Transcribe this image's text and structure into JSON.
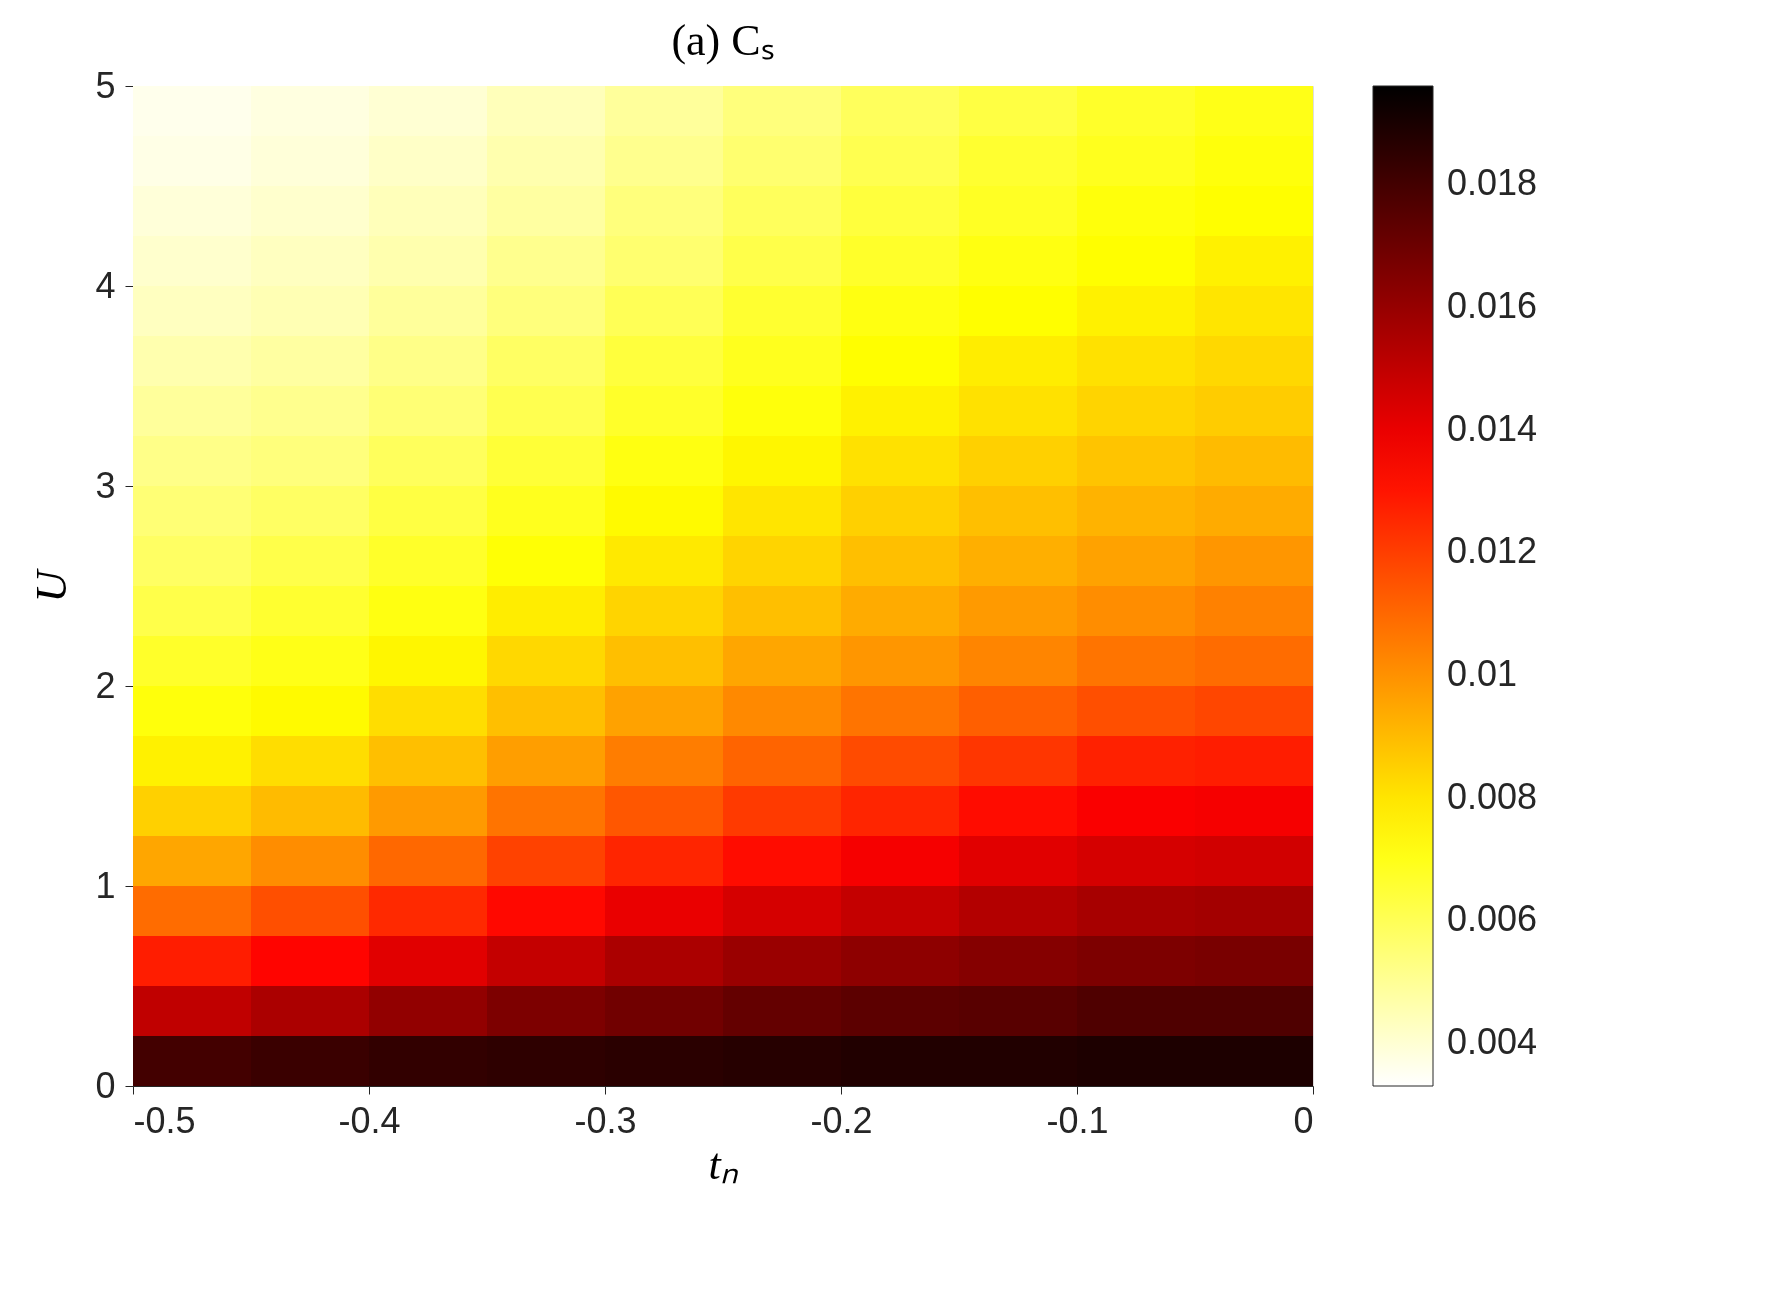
{
  "chart_data": {
    "type": "heatmap",
    "title": "(a) Cₛ",
    "xlabel": "tₙ",
    "ylabel": "U",
    "x": [
      -0.475,
      -0.425,
      -0.375,
      -0.325,
      -0.275,
      -0.225,
      -0.175,
      -0.125,
      -0.075,
      -0.025
    ],
    "y": [
      4.875,
      4.625,
      4.375,
      4.125,
      3.875,
      3.625,
      3.375,
      3.125,
      2.875,
      2.625,
      2.375,
      2.125,
      1.875,
      1.625,
      1.375,
      1.125,
      0.875,
      0.625,
      0.375,
      0.125
    ],
    "cells": [
      [
        0.0036,
        0.0038,
        0.004,
        0.0044,
        0.0049,
        0.0054,
        0.0059,
        0.0063,
        0.0067,
        0.007
      ],
      [
        0.0037,
        0.0039,
        0.0042,
        0.0046,
        0.0051,
        0.0056,
        0.0061,
        0.0066,
        0.0069,
        0.0072
      ],
      [
        0.0039,
        0.0041,
        0.0044,
        0.0048,
        0.0054,
        0.0059,
        0.0064,
        0.0068,
        0.0072,
        0.0074
      ],
      [
        0.0041,
        0.0043,
        0.0046,
        0.0051,
        0.0056,
        0.0062,
        0.0067,
        0.0071,
        0.0074,
        0.0077
      ],
      [
        0.0043,
        0.0045,
        0.0049,
        0.0054,
        0.006,
        0.0066,
        0.0071,
        0.0074,
        0.0077,
        0.008
      ],
      [
        0.0046,
        0.0048,
        0.0052,
        0.0058,
        0.0064,
        0.0069,
        0.0074,
        0.0078,
        0.0081,
        0.0083
      ],
      [
        0.0049,
        0.0051,
        0.0055,
        0.0061,
        0.0067,
        0.0072,
        0.0077,
        0.0081,
        0.0084,
        0.0086
      ],
      [
        0.0052,
        0.0054,
        0.0059,
        0.0065,
        0.0071,
        0.0076,
        0.0081,
        0.0085,
        0.0088,
        0.009
      ],
      [
        0.0055,
        0.0058,
        0.0063,
        0.0069,
        0.0075,
        0.008,
        0.0085,
        0.0089,
        0.0092,
        0.0094
      ],
      [
        0.0058,
        0.0062,
        0.0067,
        0.0073,
        0.0079,
        0.0084,
        0.0089,
        0.0093,
        0.0096,
        0.0099
      ],
      [
        0.0062,
        0.0066,
        0.0071,
        0.0078,
        0.0084,
        0.0089,
        0.0094,
        0.0098,
        0.0101,
        0.0104
      ],
      [
        0.0067,
        0.007,
        0.0076,
        0.0083,
        0.0089,
        0.0095,
        0.0099,
        0.0103,
        0.0107,
        0.0109
      ],
      [
        0.0072,
        0.0075,
        0.0082,
        0.0089,
        0.0096,
        0.0102,
        0.0107,
        0.0112,
        0.0116,
        0.0118
      ],
      [
        0.0077,
        0.0082,
        0.0089,
        0.0097,
        0.0105,
        0.0111,
        0.0117,
        0.0122,
        0.0127,
        0.0128
      ],
      [
        0.0085,
        0.009,
        0.0098,
        0.0107,
        0.0114,
        0.0121,
        0.0126,
        0.0132,
        0.0136,
        0.0137
      ],
      [
        0.0095,
        0.0101,
        0.011,
        0.0119,
        0.0126,
        0.0132,
        0.0137,
        0.0142,
        0.0145,
        0.0146
      ],
      [
        0.0109,
        0.0116,
        0.0125,
        0.0133,
        0.014,
        0.0145,
        0.0149,
        0.0153,
        0.0156,
        0.0157
      ],
      [
        0.0128,
        0.0134,
        0.0142,
        0.0149,
        0.0155,
        0.0159,
        0.0162,
        0.0164,
        0.0166,
        0.0167
      ],
      [
        0.015,
        0.0155,
        0.0161,
        0.0166,
        0.0169,
        0.0172,
        0.0174,
        0.0175,
        0.0177,
        0.0177
      ],
      [
        0.018,
        0.0182,
        0.0184,
        0.0185,
        0.0186,
        0.0187,
        0.0188,
        0.0188,
        0.0189,
        0.0189
      ]
    ],
    "colors": [
      "#ffffff",
      "#ffff00",
      "#ff0000",
      "#000000"
    ],
    "clim": [
      0.0033,
      0.0196
    ],
    "cticks": [
      0.004,
      0.006,
      0.008,
      0.01,
      0.012,
      0.014,
      0.016,
      0.018
    ],
    "xlim": [
      -0.5,
      0
    ],
    "xticks": [
      -0.5,
      -0.4,
      -0.3,
      -0.2,
      -0.1,
      0
    ],
    "ylim": [
      0,
      5
    ],
    "yticks": [
      0,
      1,
      2,
      3,
      4,
      5
    ],
    "grid": false
  }
}
